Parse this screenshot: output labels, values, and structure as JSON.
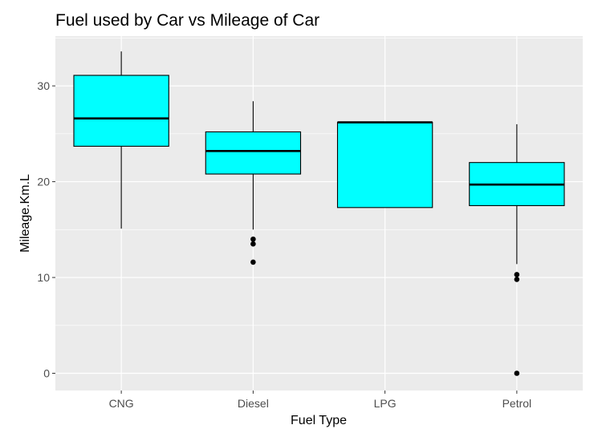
{
  "chart_data": {
    "type": "box",
    "title": "Fuel used by Car vs Mileage of Car",
    "xlabel": "Fuel Type",
    "ylabel": "Mileage.Km.L",
    "ylim": [
      -1.8,
      35.2
    ],
    "y_ticks": [
      0,
      10,
      20,
      30
    ],
    "y_tick_labels": [
      "0",
      "10",
      "20",
      "30"
    ],
    "grid": true,
    "fill_color": "#00ffff",
    "panel_color": "#ebebeb",
    "categories": [
      "CNG",
      "Diesel",
      "LPG",
      "Petrol"
    ],
    "boxes": [
      {
        "category": "CNG",
        "whisker_low": 15.1,
        "q1": 23.7,
        "median": 26.6,
        "q3": 31.1,
        "whisker_high": 33.6,
        "outliers": []
      },
      {
        "category": "Diesel",
        "whisker_low": 15.0,
        "q1": 20.8,
        "median": 23.2,
        "q3": 25.2,
        "whisker_high": 28.4,
        "outliers": [
          14.0,
          13.5,
          11.6
        ]
      },
      {
        "category": "LPG",
        "whisker_low": 17.3,
        "q1": 17.3,
        "median": 26.2,
        "q3": 26.2,
        "whisker_high": 26.2,
        "outliers": []
      },
      {
        "category": "Petrol",
        "whisker_low": 11.4,
        "q1": 17.5,
        "median": 19.7,
        "q3": 22.0,
        "whisker_high": 26.0,
        "outliers": [
          10.3,
          9.8,
          0.0
        ]
      }
    ]
  }
}
